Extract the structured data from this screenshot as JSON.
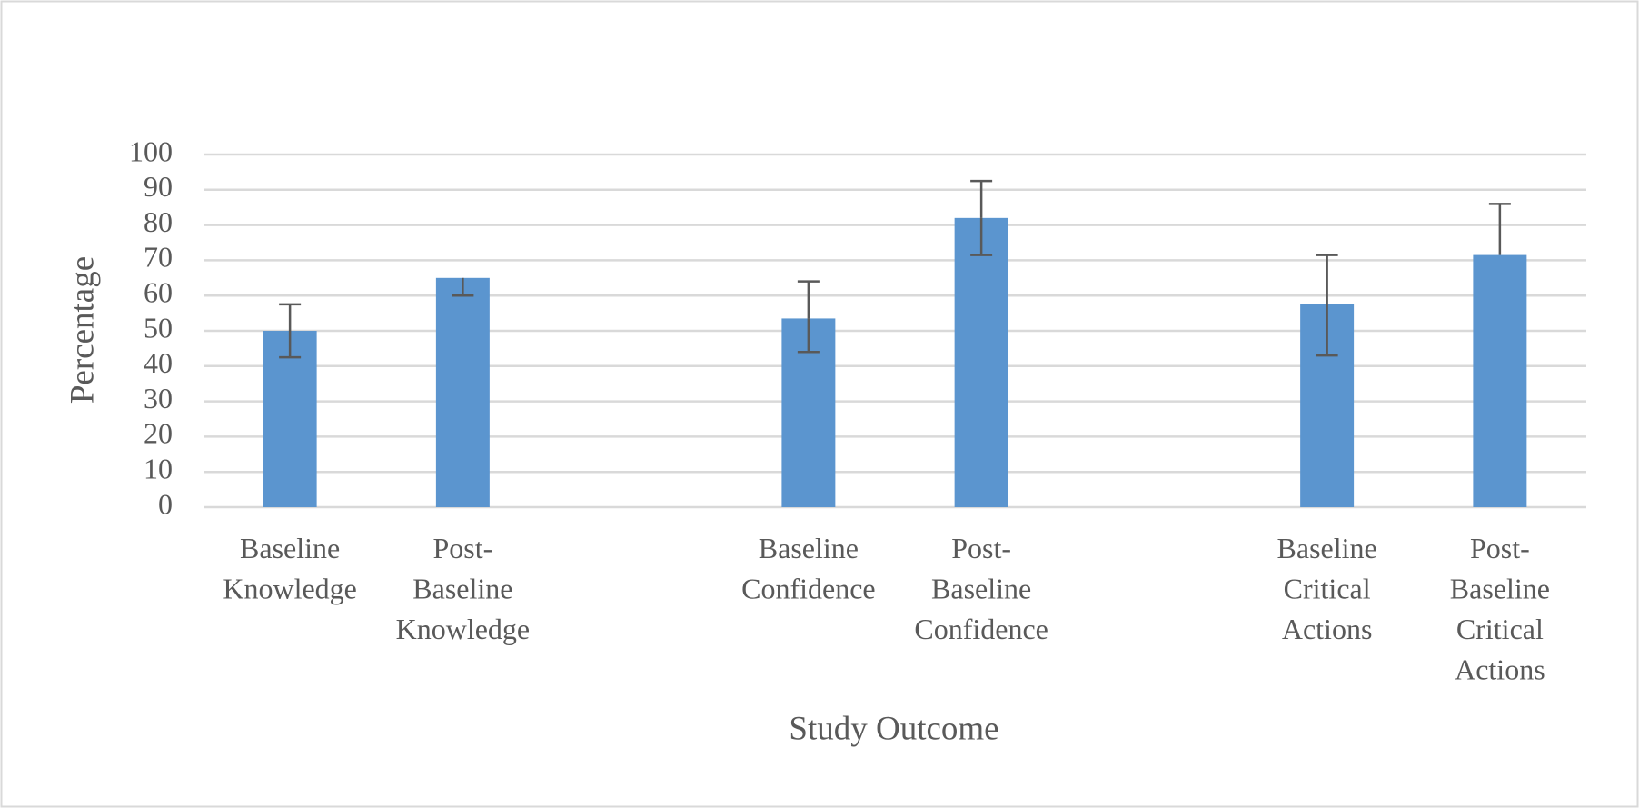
{
  "chart_data": {
    "type": "bar",
    "x_label": "Study Outcome",
    "y_label": "Percentage",
    "categories": [
      [
        "Baseline",
        "Knowledge"
      ],
      [
        "Post-",
        "Baseline",
        "Knowledge"
      ],
      null,
      [
        "Baseline",
        "Confidence"
      ],
      [
        "Post-",
        "Baseline",
        "Confidence"
      ],
      null,
      [
        "Baseline",
        "Critical",
        "Actions"
      ],
      [
        "Post-",
        "Baseline",
        "Critical",
        "Actions"
      ]
    ],
    "values": [
      50,
      65,
      null,
      53.5,
      82,
      null,
      57.5,
      71.5
    ],
    "error_plus": [
      7.5,
      0,
      null,
      10.5,
      10.5,
      null,
      14,
      14.5
    ],
    "error_minus": [
      7.5,
      5,
      null,
      9.5,
      10.5,
      null,
      14.5,
      0
    ],
    "color": "#5b95cf",
    "ylim": [
      0,
      100
    ],
    "yticks": [
      0,
      10,
      20,
      30,
      40,
      50,
      60,
      70,
      80,
      90,
      100
    ],
    "grid": true
  }
}
